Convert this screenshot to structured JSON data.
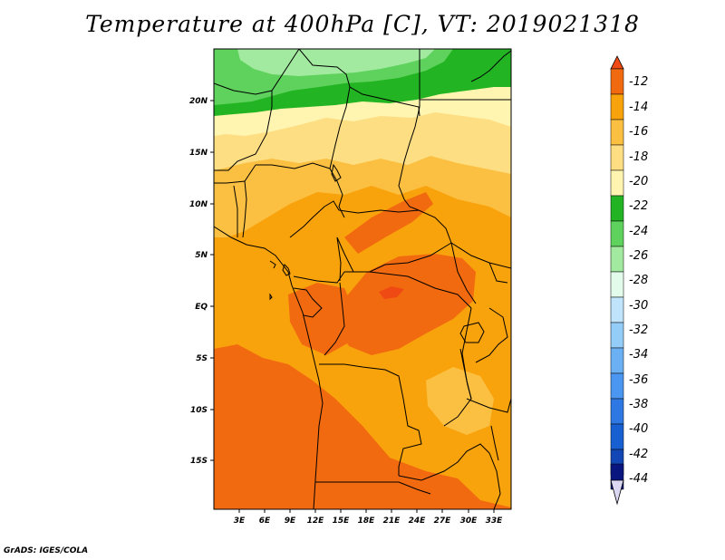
{
  "title": "Temperature at 400hPa [C], VT: 2019021318",
  "credit": "GrADS: IGES/COLA",
  "axes": {
    "lat_ticks": [
      "20N",
      "15N",
      "10N",
      "5N",
      "EQ",
      "5S",
      "10S",
      "15S"
    ],
    "lon_ticks": [
      "3E",
      "6E",
      "9E",
      "12E",
      "15E",
      "18E",
      "21E",
      "24E",
      "27E",
      "30E",
      "33E"
    ]
  },
  "colorbar": {
    "labels": [
      "-12",
      "-14",
      "-16",
      "-18",
      "-20",
      "-22",
      "-24",
      "-26",
      "-28",
      "-30",
      "-32",
      "-34",
      "-36",
      "-38",
      "-40",
      "-42",
      "-44"
    ],
    "top_arrow_color": "#f04a14",
    "bottom_arrow_color": "#dcd8f4",
    "colors": [
      "#f26a10",
      "#f8a20c",
      "#fbc042",
      "#fede82",
      "#fff4b0",
      "#22b422",
      "#5ed25c",
      "#a2eaa0",
      "#e2fbea",
      "#bfe4fb",
      "#94cdf8",
      "#6cb0f4",
      "#4b96f0",
      "#2e78e4",
      "#1860d2",
      "#1246b4",
      "#0a1680"
    ]
  },
  "map_colors": {
    "c_14": "#f26a10",
    "c_16": "#f8a20c",
    "c_18": "#fbc042",
    "c_20": "#fede82",
    "c_22": "#fff4b0",
    "c_24": "#22b422",
    "c_26": "#5ed25c",
    "c_28": "#a2eaa0",
    "c_30": "#e2fbea",
    "c_12": "#f04a14"
  }
}
